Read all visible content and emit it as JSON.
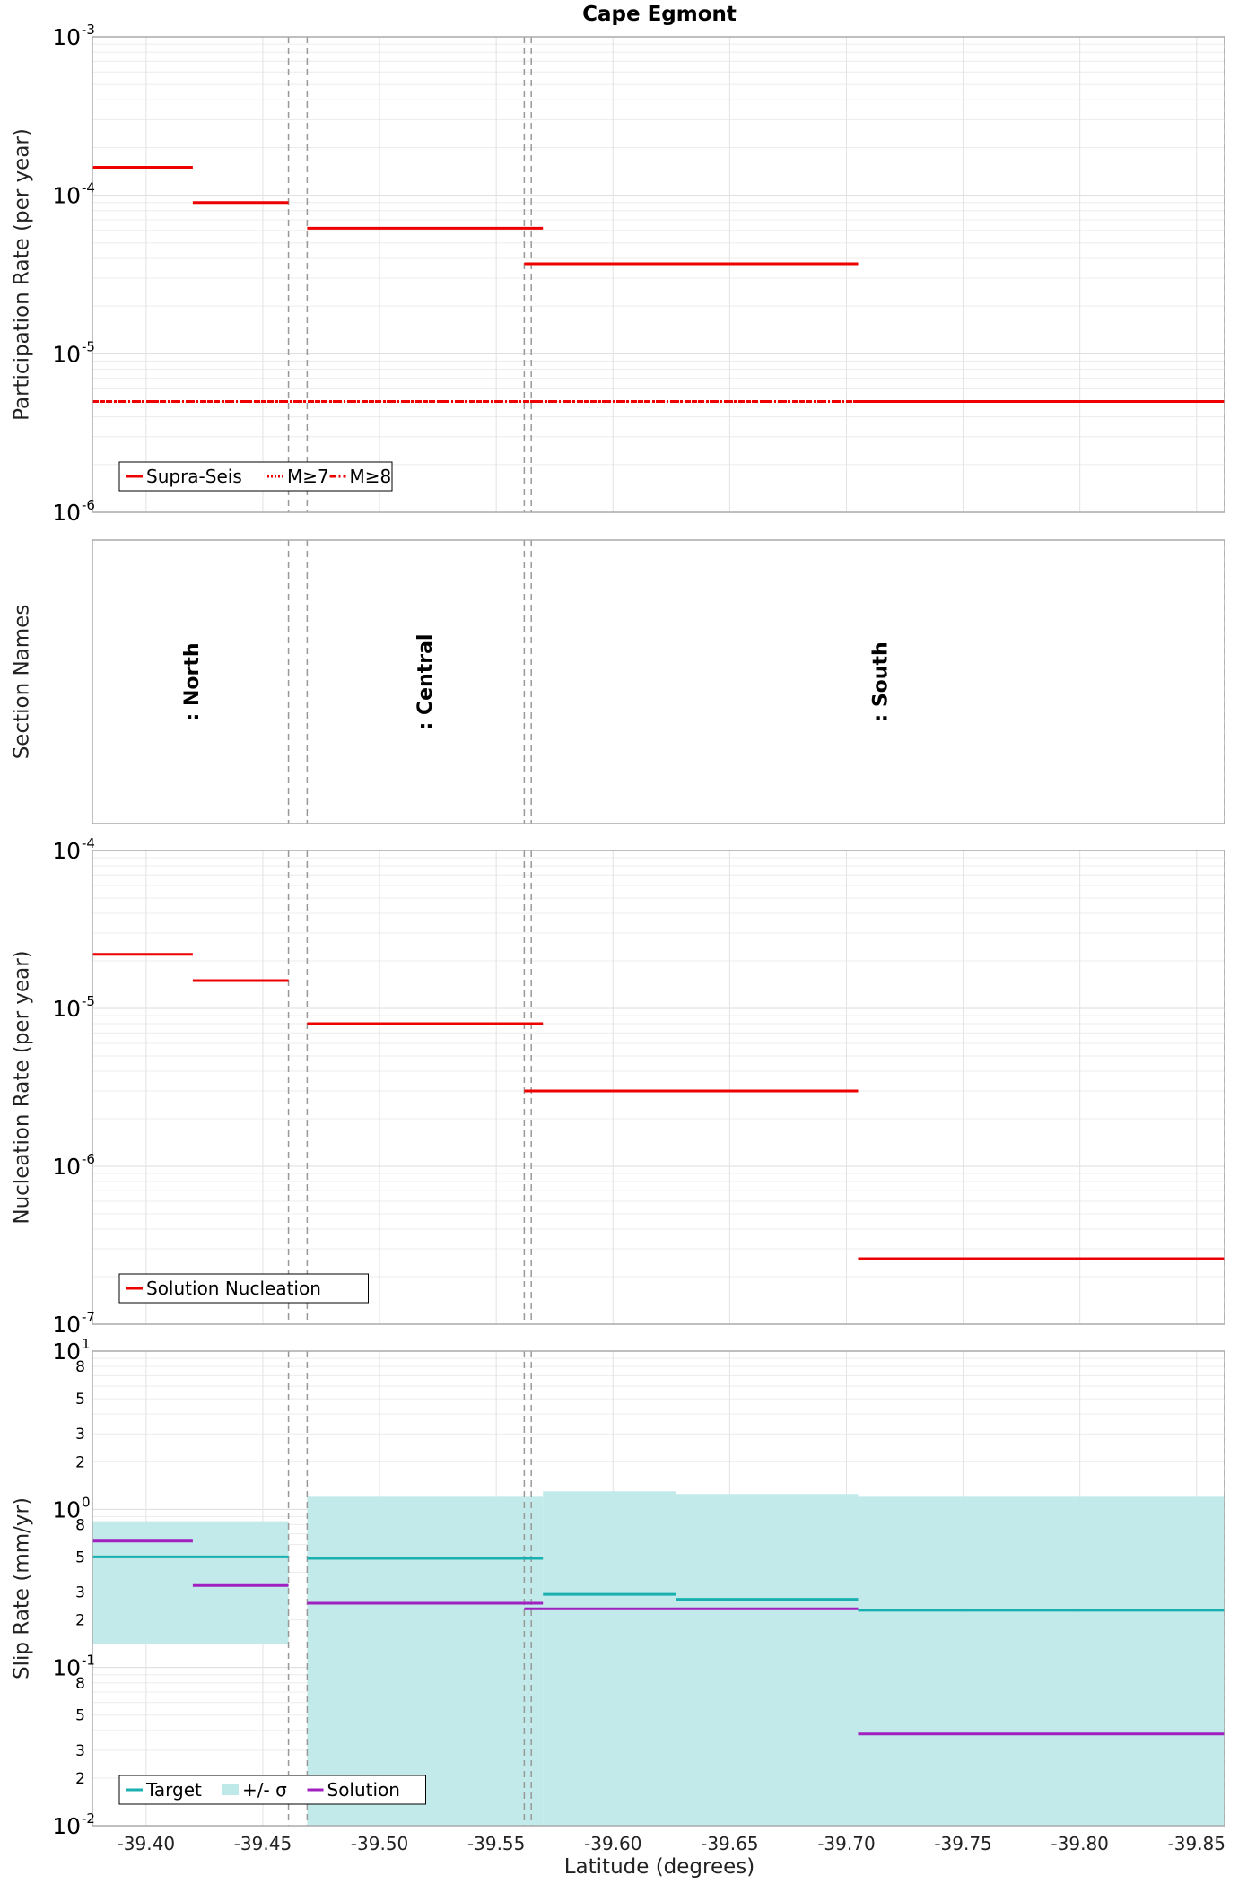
{
  "chart_data": {
    "type": "line",
    "title": "Cape Egmont",
    "xlabel": "Latitude (degrees)",
    "xlim": [
      -39.377,
      -39.862
    ],
    "x_reversed": true,
    "x_ticks": [
      -39.4,
      -39.45,
      -39.5,
      -39.55,
      -39.6,
      -39.65,
      -39.7,
      -39.75,
      -39.8,
      -39.85
    ],
    "x_tick_labels": [
      "-39.40",
      "-39.45",
      "-39.50",
      "-39.55",
      "-39.60",
      "-39.65",
      "-39.70",
      "-39.75",
      "-39.80",
      "-39.85"
    ],
    "section_boundaries": [
      -39.461,
      -39.469,
      -39.562,
      -39.565,
      -39.862
    ],
    "panels": [
      {
        "id": "participation",
        "ylabel": "Participation Rate (per year)",
        "yscale": "log",
        "ylim": [
          1e-06,
          0.001
        ],
        "y_tick_exponents": [
          "-6",
          "-5",
          "-4",
          "-3"
        ],
        "legend": {
          "location": "lower-left",
          "entries": [
            "Supra-Seis",
            "M≥7",
            "M≥8"
          ]
        },
        "series": [
          {
            "name": "Supra-Seis",
            "color": "#ee0000",
            "style": "solid",
            "segments": [
              {
                "x": [
                  -39.377,
                  -39.42
                ],
                "y": 0.00015
              },
              {
                "x": [
                  -39.42,
                  -39.461
                ],
                "y": 9e-05
              },
              {
                "x": [
                  -39.469,
                  -39.57
                ],
                "y": 6.2e-05
              },
              {
                "x": [
                  -39.562,
                  -39.705
                ],
                "y": 3.7e-05
              },
              {
                "x": [
                  -39.705,
                  -39.862
                ],
                "y": 5e-06
              }
            ]
          },
          {
            "name": "M≥7",
            "color": "#ee0000",
            "style": "dotted",
            "segments": [
              {
                "x": [
                  -39.377,
                  -39.705
                ],
                "y": 5e-06
              }
            ]
          },
          {
            "name": "M≥8",
            "color": "#ee0000",
            "style": "dashdot",
            "segments": [
              {
                "x": [
                  -39.377,
                  -39.705
                ],
                "y": 5e-06
              }
            ]
          }
        ]
      },
      {
        "id": "sections",
        "ylabel": "Section Names",
        "sections": [
          {
            "name": ": North",
            "x": -39.42
          },
          {
            "name": ": Central",
            "x": -39.52
          },
          {
            "name": ": South",
            "x": -39.715
          }
        ]
      },
      {
        "id": "nucleation",
        "ylabel": "Nucleation Rate (per year)",
        "yscale": "log",
        "ylim": [
          1e-07,
          0.0001
        ],
        "y_tick_exponents": [
          "-7",
          "-6",
          "-5",
          "-4"
        ],
        "legend": {
          "location": "lower-left",
          "entries": [
            "Solution Nucleation"
          ]
        },
        "series": [
          {
            "name": "Solution Nucleation",
            "color": "#ee0000",
            "style": "solid",
            "segments": [
              {
                "x": [
                  -39.377,
                  -39.42
                ],
                "y": 2.2e-05
              },
              {
                "x": [
                  -39.42,
                  -39.461
                ],
                "y": 1.5e-05
              },
              {
                "x": [
                  -39.469,
                  -39.57
                ],
                "y": 8e-06
              },
              {
                "x": [
                  -39.562,
                  -39.705
                ],
                "y": 3e-06
              },
              {
                "x": [
                  -39.705,
                  -39.862
                ],
                "y": 2.6e-07
              }
            ]
          }
        ]
      },
      {
        "id": "slip",
        "ylabel": "Slip Rate (mm/yr)",
        "yscale": "log",
        "ylim": [
          0.01,
          10
        ],
        "y_tick_exponents": [
          "-2",
          "-1",
          "0",
          "1"
        ],
        "y_minor_labels": [
          {
            "v": 0.02,
            "t": "2"
          },
          {
            "v": 0.03,
            "t": "3"
          },
          {
            "v": 0.05,
            "t": "5"
          },
          {
            "v": 0.08,
            "t": "8"
          },
          {
            "v": 0.2,
            "t": "2"
          },
          {
            "v": 0.3,
            "t": "3"
          },
          {
            "v": 0.5,
            "t": "5"
          },
          {
            "v": 0.8,
            "t": "8"
          },
          {
            "v": 2,
            "t": "2"
          },
          {
            "v": 3,
            "t": "3"
          },
          {
            "v": 5,
            "t": "5"
          },
          {
            "v": 8,
            "t": "8"
          }
        ],
        "legend": {
          "location": "lower-left",
          "entries": [
            "Target",
            "+/- σ",
            "Solution"
          ]
        },
        "sigma_band": {
          "name": "+/- σ",
          "color": "#bfe9e9",
          "segments": [
            {
              "x": [
                -39.377,
                -39.461
              ],
              "y0": 0.14,
              "y1": 0.84
            },
            {
              "x": [
                -39.469,
                -39.562
              ],
              "y0": 0.01,
              "y1": 1.2
            },
            {
              "x": [
                -39.562,
                -39.565
              ],
              "y0": 0.01,
              "y1": 1.2
            },
            {
              "x": [
                -39.565,
                -39.57
              ],
              "y0": 0.01,
              "y1": 1.2
            },
            {
              "x": [
                -39.57,
                -39.627
              ],
              "y0": 0.01,
              "y1": 1.3
            },
            {
              "x": [
                -39.627,
                -39.705
              ],
              "y0": 0.01,
              "y1": 1.25
            },
            {
              "x": [
                -39.705,
                -39.862
              ],
              "y0": 0.01,
              "y1": 1.2
            }
          ]
        },
        "series": [
          {
            "name": "Target",
            "color": "#1ab0b0",
            "style": "solid",
            "segments": [
              {
                "x": [
                  -39.377,
                  -39.461
                ],
                "y": 0.5
              },
              {
                "x": [
                  -39.469,
                  -39.57
                ],
                "y": 0.49
              },
              {
                "x": [
                  -39.57,
                  -39.627
                ],
                "y": 0.29
              },
              {
                "x": [
                  -39.627,
                  -39.705
                ],
                "y": 0.27
              },
              {
                "x": [
                  -39.705,
                  -39.862
                ],
                "y": 0.23
              }
            ]
          },
          {
            "name": "Solution",
            "color": "#a020c0",
            "style": "solid",
            "segments": [
              {
                "x": [
                  -39.377,
                  -39.42
                ],
                "y": 0.63
              },
              {
                "x": [
                  -39.42,
                  -39.461
                ],
                "y": 0.33
              },
              {
                "x": [
                  -39.469,
                  -39.57
                ],
                "y": 0.255
              },
              {
                "x": [
                  -39.562,
                  -39.705
                ],
                "y": 0.235
              },
              {
                "x": [
                  -39.705,
                  -39.862
                ],
                "y": 0.038
              }
            ]
          }
        ]
      }
    ]
  }
}
